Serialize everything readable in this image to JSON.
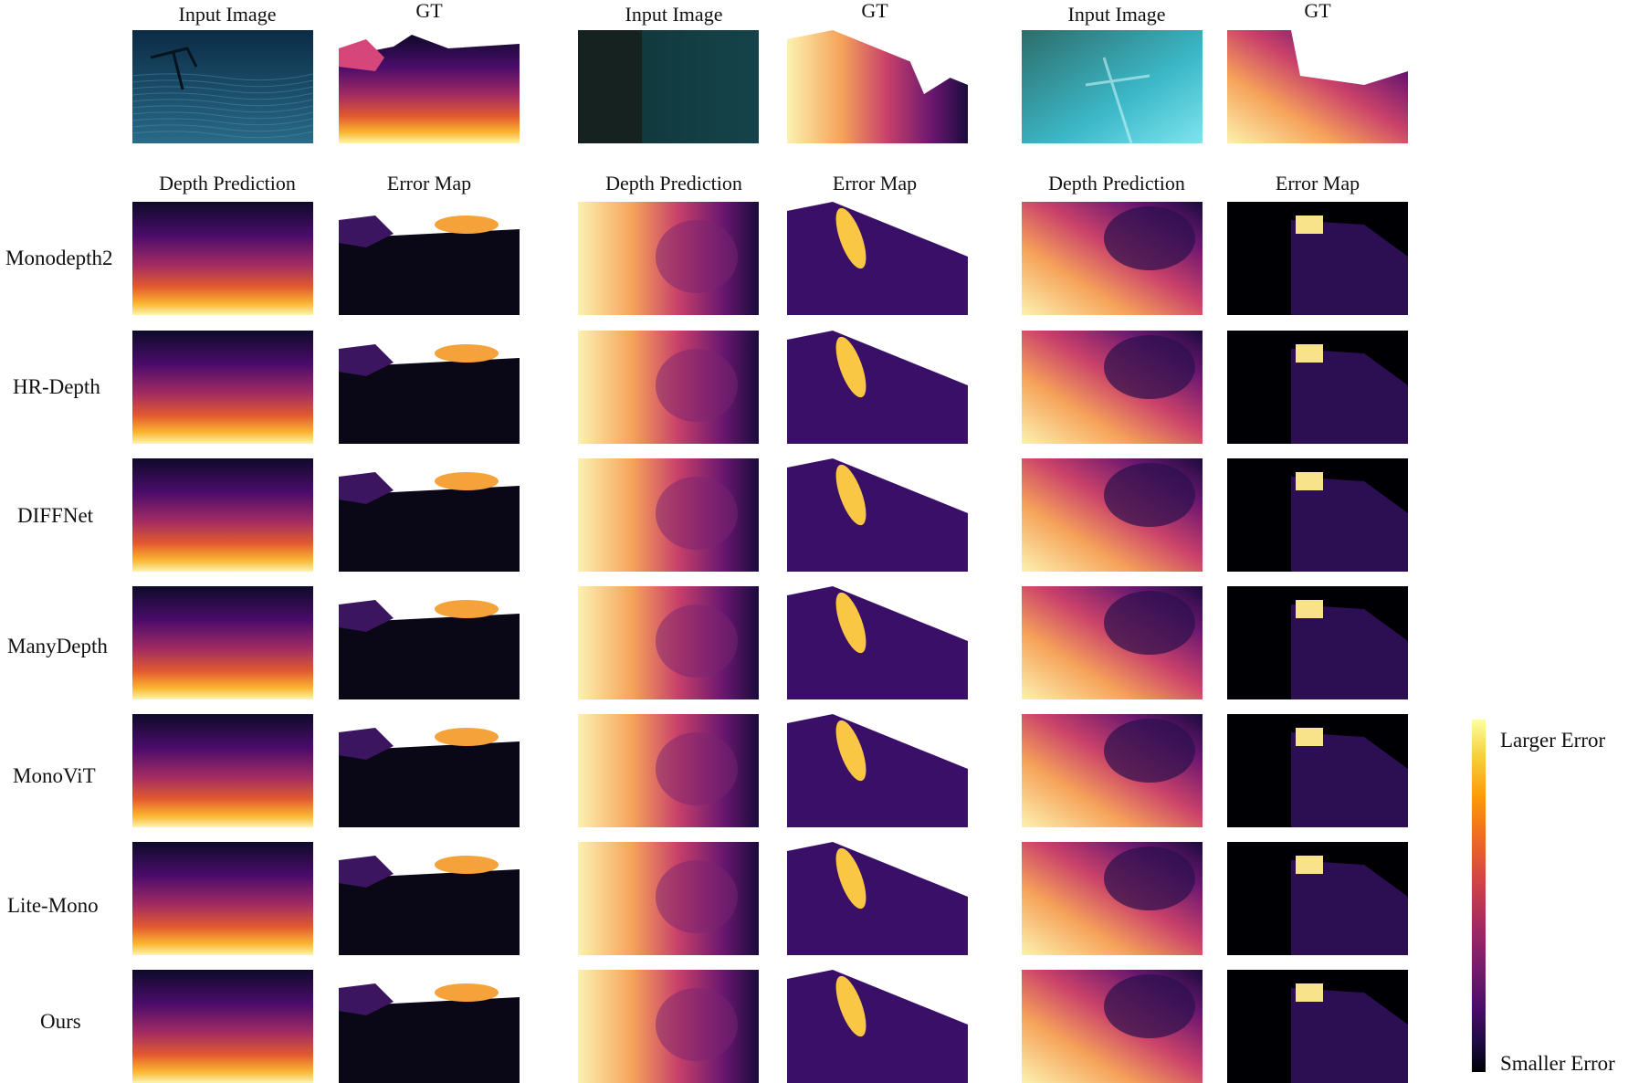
{
  "figure": {
    "top_headers": [
      "Input Image",
      "GT",
      "Input Image",
      "GT",
      "Input Image",
      "GT"
    ],
    "sub_headers": [
      "Depth Prediction",
      "Error Map",
      "Depth Prediction",
      "Error Map",
      "Depth Prediction",
      "Error Map"
    ],
    "methods": [
      "Monodepth2",
      "HR-Depth",
      "DIFFNet",
      "ManyDepth",
      "MonoViT",
      "Lite-Mono",
      "Ours"
    ],
    "colorbar": {
      "top_label": "Larger Error",
      "bottom_label": "Smaller Error",
      "colormap": "inferno",
      "top_color": "#fcffa4",
      "bottom_color": "#000004"
    }
  }
}
